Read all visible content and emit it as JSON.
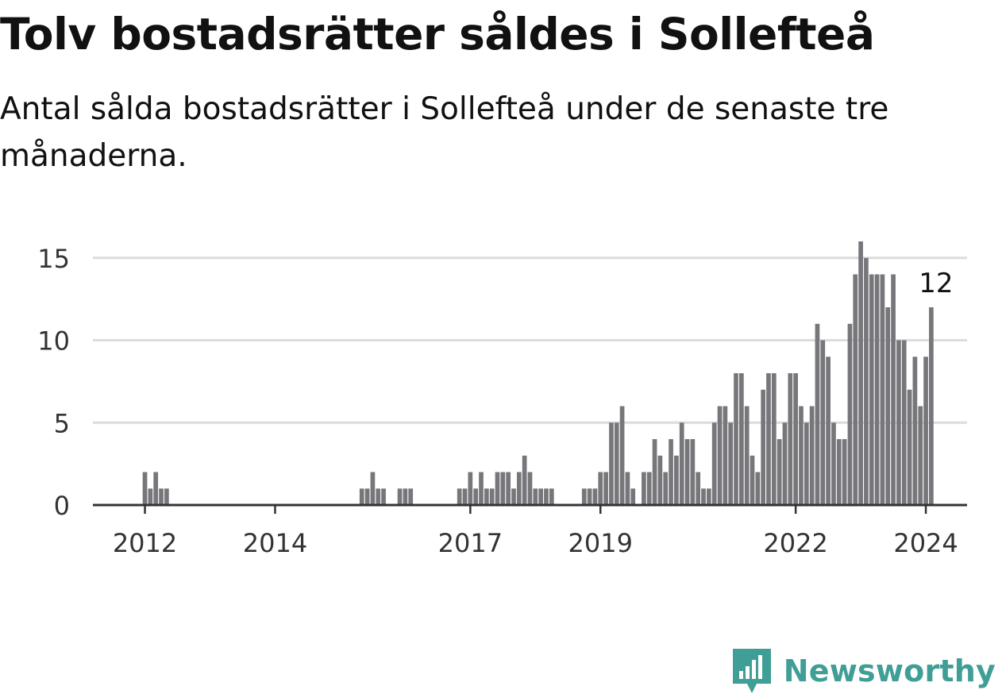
{
  "header": {
    "title": "Tolv bostadsrätter såldes i Sollefteå",
    "subtitle": "Antal sålda bostadsrätter i Sollefteå under de senaste tre månaderna."
  },
  "brand": {
    "name": "Newsworthy",
    "icon": "newsworthy-logo-icon",
    "color": "#3f9e95"
  },
  "colors": {
    "bar": "#76767b",
    "highlight": "#18a39a",
    "grid": "#dcdcdc",
    "axis": "#333333",
    "tick_text": "#333333"
  },
  "chart_data": {
    "type": "bar",
    "title": "Tolv bostadsrätter såldes i Sollefteå",
    "subtitle": "Antal sålda bostadsrätter i Sollefteå under de senaste tre månaderna.",
    "xlabel": "",
    "ylabel": "",
    "start": "2011-10",
    "end": "2024-03",
    "ylim": [
      0,
      16
    ],
    "yticks": [
      0,
      5,
      10,
      15
    ],
    "xticks": [
      {
        "label": "2012",
        "month": "2012-01"
      },
      {
        "label": "2014",
        "month": "2014-01"
      },
      {
        "label": "2017",
        "month": "2017-01"
      },
      {
        "label": "2019",
        "month": "2019-01"
      },
      {
        "label": "2022",
        "month": "2022-01"
      },
      {
        "label": "2024",
        "month": "2024-01"
      }
    ],
    "grid": true,
    "legend": "none",
    "highlight": {
      "month": "2024-03",
      "value": 12,
      "label": "12"
    },
    "values": [
      0,
      0,
      0,
      2,
      1,
      2,
      1,
      1,
      0,
      0,
      0,
      0,
      0,
      0,
      0,
      0,
      0,
      0,
      0,
      0,
      0,
      0,
      0,
      0,
      0,
      0,
      0,
      0,
      0,
      0,
      0,
      0,
      0,
      0,
      0,
      0,
      0,
      0,
      0,
      0,
      0,
      0,
      0,
      1,
      1,
      2,
      1,
      1,
      0,
      0,
      1,
      1,
      1,
      0,
      0,
      0,
      0,
      0,
      0,
      0,
      0,
      1,
      1,
      2,
      1,
      2,
      1,
      1,
      2,
      2,
      2,
      1,
      2,
      3,
      2,
      1,
      1,
      1,
      1,
      0,
      0,
      0,
      0,
      0,
      1,
      1,
      1,
      2,
      2,
      5,
      5,
      6,
      2,
      1,
      0,
      2,
      2,
      4,
      3,
      2,
      4,
      3,
      5,
      4,
      4,
      2,
      1,
      1,
      5,
      6,
      6,
      5,
      8,
      8,
      6,
      3,
      2,
      7,
      8,
      8,
      4,
      5,
      8,
      8,
      6,
      5,
      6,
      11,
      10,
      9,
      5,
      4,
      4,
      11,
      14,
      16,
      15,
      14,
      14,
      14,
      12,
      14,
      10,
      10,
      7,
      9,
      6,
      9,
      12
    ]
  }
}
